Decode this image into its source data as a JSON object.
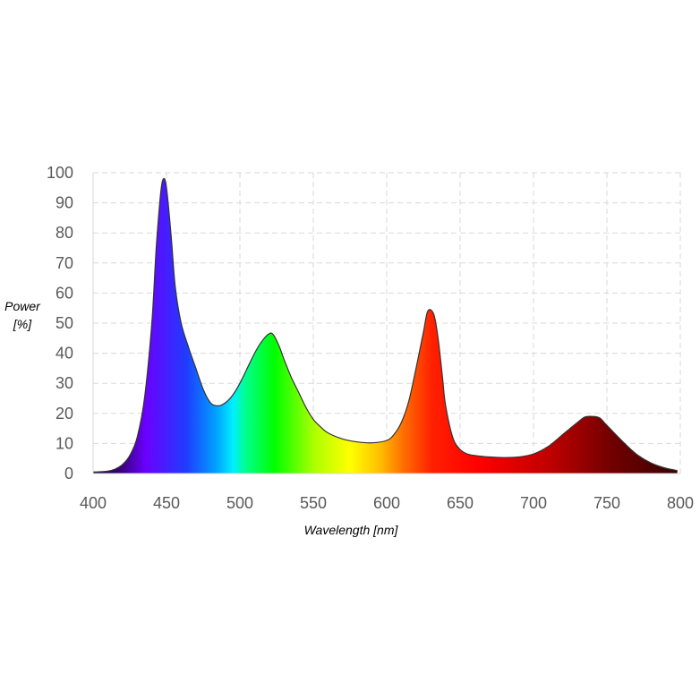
{
  "chart_data": {
    "type": "area",
    "title": "",
    "xlabel": "Wavelength [nm]",
    "ylabel_lines": [
      "Power",
      "[%]"
    ],
    "xlim": [
      400,
      800
    ],
    "ylim": [
      0,
      100
    ],
    "x_ticks": [
      400,
      450,
      500,
      550,
      600,
      650,
      700,
      750,
      800
    ],
    "y_ticks": [
      0,
      10,
      20,
      30,
      40,
      50,
      60,
      70,
      80,
      90,
      100
    ],
    "grid": true,
    "legend": "none",
    "fill": "visible-spectrum gradient",
    "series": [
      {
        "x": [
          400,
          410,
          415,
          420,
          425,
          430,
          435,
          440,
          443,
          446,
          448,
          450,
          453,
          456,
          460,
          465,
          470,
          475,
          480,
          485,
          490,
          495,
          500,
          505,
          510,
          515,
          520,
          523,
          527,
          530,
          535,
          540,
          545,
          550,
          555,
          560,
          570,
          580,
          590,
          600,
          605,
          610,
          615,
          620,
          625,
          628,
          632,
          635,
          638,
          640,
          645,
          650,
          655,
          660,
          670,
          680,
          690,
          700,
          710,
          720,
          730,
          735,
          740,
          745,
          750,
          760,
          770,
          780,
          790,
          798
        ],
        "y": [
          0.5,
          0.8,
          1.5,
          3,
          6,
          12,
          25,
          50,
          75,
          93,
          98,
          95,
          80,
          62,
          50,
          42,
          35,
          28,
          23.5,
          22.5,
          23.5,
          26,
          30,
          35,
          40,
          44,
          46.5,
          46,
          42,
          38,
          32,
          27,
          22,
          18,
          15.5,
          13.5,
          11.5,
          10.5,
          10.2,
          11,
          13,
          17,
          24,
          35,
          47,
          54,
          53,
          45,
          32,
          23,
          12,
          8,
          6.5,
          6,
          5.5,
          5.3,
          5.5,
          6.5,
          9,
          13,
          17,
          18.8,
          19,
          18.5,
          16,
          11,
          6.5,
          3.5,
          1.8,
          1
        ]
      }
    ]
  }
}
